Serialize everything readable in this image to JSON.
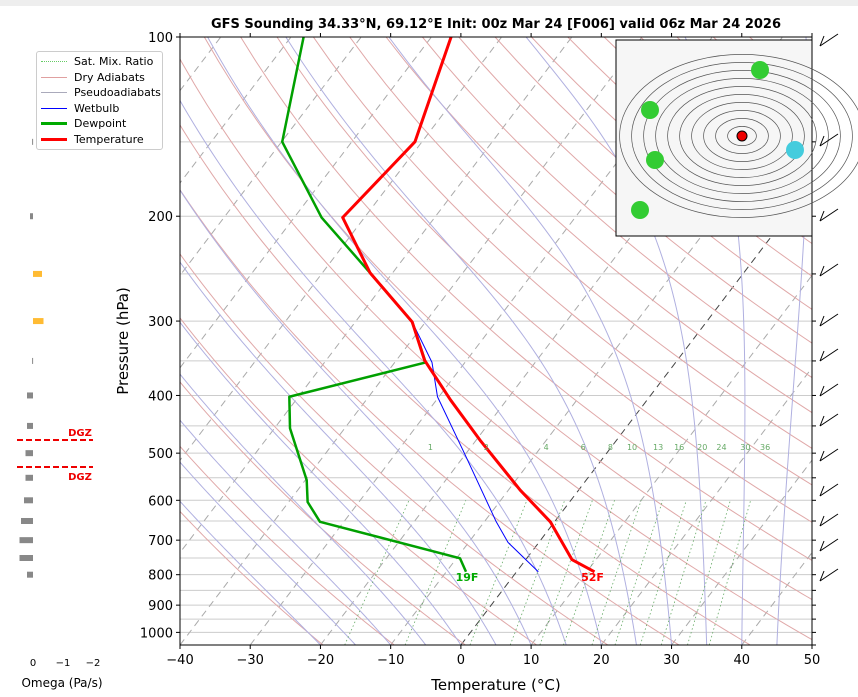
{
  "chart_data": {
    "type": "line",
    "title": "GFS Sounding 34.33°N, 69.12°E Init: 00z Mar 24 [F006] valid 06z Mar 24 2026",
    "xlabel": "Temperature (°C)",
    "ylabel": "Pressure (hPa)",
    "xlim": [
      -40,
      50
    ],
    "ylim": [
      1050,
      100
    ],
    "xticks": [
      -40,
      -30,
      -20,
      -10,
      0,
      10,
      20,
      30,
      40,
      50
    ],
    "yticks": [
      100,
      200,
      300,
      400,
      500,
      600,
      700,
      800,
      900,
      1000
    ],
    "legend": {
      "placement": "top-left",
      "entries": [
        "Sat. Mix. Ratio",
        "Dry Adiabats",
        "Pseudoadiabats",
        "Wetbulb",
        "Dewpoint",
        "Temperature"
      ]
    },
    "mixing_ratio_labels": [
      "1",
      "2",
      "4",
      "6",
      "8",
      "10",
      "13",
      "16",
      "20",
      "24",
      "30",
      "36"
    ],
    "series": [
      {
        "name": "Temperature",
        "color": "#ff0000",
        "pressure": [
          791,
          755,
          652,
          577,
          475,
          407,
          349,
          301,
          249,
          201,
          150,
          100
        ],
        "temp": [
          11.1,
          6.6,
          -0.6,
          -8.3,
          -19.5,
          -28,
          -36,
          -41.9,
          -53.2,
          -63.1,
          -61,
          -67.2
        ]
      },
      {
        "name": "Dewpoint",
        "color": "#00a000",
        "pressure": [
          791,
          751,
          652,
          604,
          555,
          454,
          402,
          352,
          301,
          249,
          201,
          150,
          100
        ],
        "temp": [
          -7.2,
          -9.5,
          -33.4,
          -37.3,
          -39.8,
          -47.8,
          -51.3,
          -35.6,
          -41.9,
          -53.2,
          -66.1,
          -79.9,
          -88.2
        ]
      },
      {
        "name": "Wetbulb",
        "color": "#0000ff",
        "pressure": [
          791,
          706,
          652,
          503,
          402,
          352,
          301,
          249,
          201,
          150,
          100
        ],
        "temp": [
          3.1,
          -4.4,
          -8.3,
          -20,
          -30.2,
          -34.7,
          -41.9,
          -53.2,
          -63.1,
          -61,
          -67.2
        ]
      }
    ],
    "surface_labels": {
      "temp": "52F",
      "dewpoint": "19F"
    },
    "omega": {
      "xlabel": "Omega (Pa/s)",
      "xticks": [
        "0",
        "−1",
        "−2"
      ],
      "dgz_label": "DGZ",
      "dgz_pressures": [
        475,
        528
      ],
      "pressure": [
        150,
        200,
        250,
        300,
        350,
        400,
        450,
        500,
        550,
        600,
        650,
        700,
        750,
        800
      ],
      "values": [
        0.03,
        0.1,
        -0.3,
        -0.35,
        0.03,
        0.2,
        0.2,
        0.25,
        0.25,
        0.3,
        0.4,
        0.45,
        0.45,
        0.2
      ]
    }
  }
}
